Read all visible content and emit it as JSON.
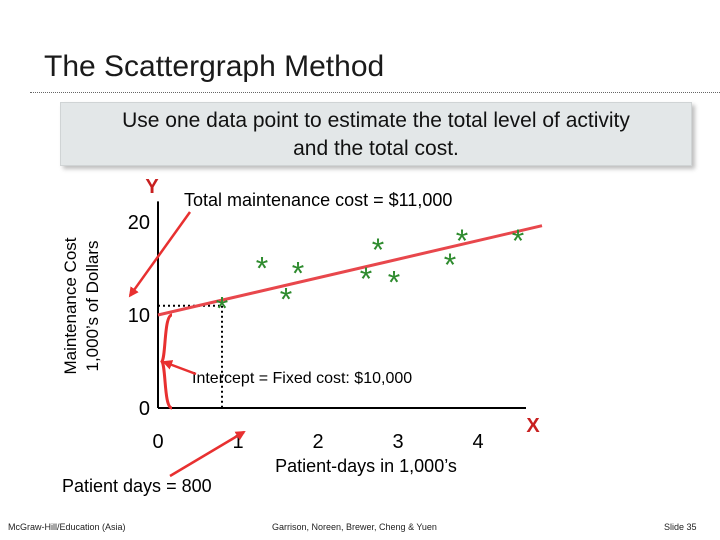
{
  "slide": {
    "title": "The Scattergraph Method",
    "callout_line1": "Use one data point to estimate the total level of activity",
    "callout_line2": "and the total cost.",
    "total_cost_label": "Total maintenance cost = $11,000",
    "intercept_label": "Intercept = Fixed cost: $10,000",
    "patient_days_label": "Patient days = 800",
    "footer_left": "McGraw-Hill/Education (Asia)",
    "footer_center": "Garrison, Noreen, Brewer, Cheng & Yuen",
    "footer_right": "Slide 35"
  },
  "chart_data": {
    "type": "scatter",
    "xlabel": "Patient-days in 1,000’s",
    "ylabel_line1": "Maintenance Cost",
    "ylabel_line2": "1,000’s of Dollars",
    "x_axis_letter": "X",
    "y_axis_letter": "Y",
    "x_ticks": [
      0,
      1,
      2,
      3,
      4
    ],
    "y_ticks": [
      0,
      10,
      20
    ],
    "xlim": [
      0,
      4.6
    ],
    "ylim": [
      0,
      22
    ],
    "marker": "*",
    "marker_color": "#2e8b2e",
    "line_color": "#e8474c",
    "arrow_color": "#e83030",
    "points": [
      {
        "x": 0.8,
        "y": 11
      },
      {
        "x": 1.3,
        "y": 15.3
      },
      {
        "x": 1.6,
        "y": 12
      },
      {
        "x": 1.75,
        "y": 14.8
      },
      {
        "x": 2.6,
        "y": 14.2
      },
      {
        "x": 2.75,
        "y": 17.3
      },
      {
        "x": 2.95,
        "y": 13.8
      },
      {
        "x": 3.65,
        "y": 15.7
      },
      {
        "x": 3.8,
        "y": 18.3
      },
      {
        "x": 4.5,
        "y": 18.3
      }
    ],
    "fitted_line": {
      "x_start": 0,
      "y_start": 10,
      "x_end": 4.8,
      "y_end": 19.6
    },
    "highlight_point": {
      "x": 0.8,
      "y": 11
    }
  }
}
